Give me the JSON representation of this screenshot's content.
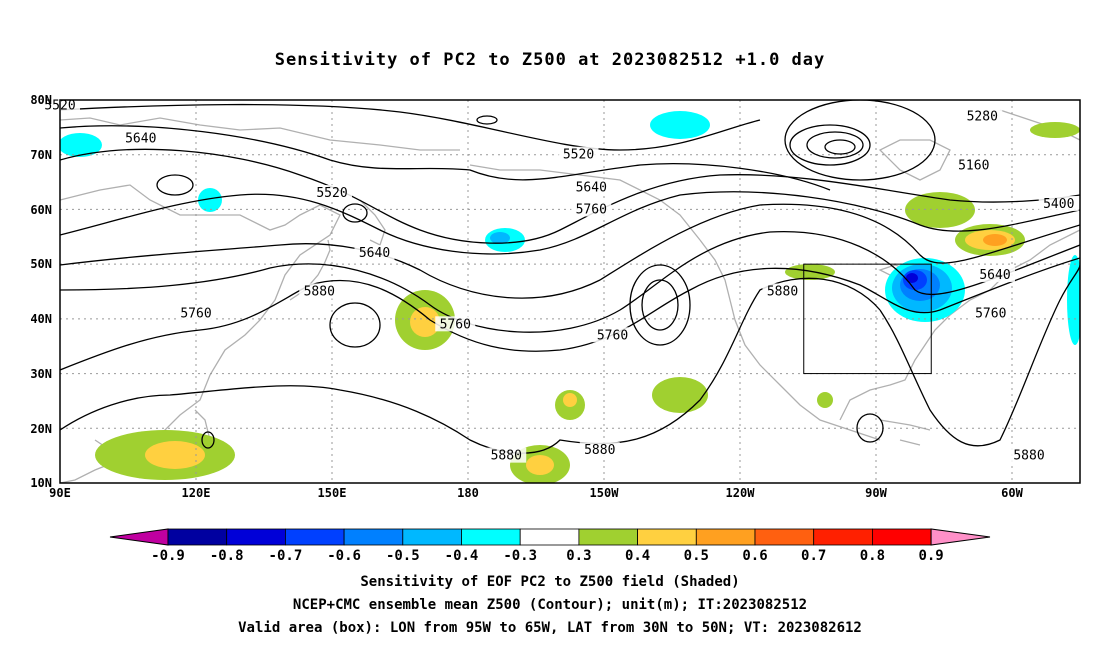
{
  "title": "Sensitivity of PC2 to Z500 at 2023082512 +1.0 day",
  "captions": [
    "Sensitivity of EOF PC2 to Z500 field (Shaded)",
    "NCEP+CMC ensemble mean Z500 (Contour); unit(m); IT:2023082512",
    "Valid area (box): LON from 95W to 65W, LAT from 30N to 50N; VT: 2023082612"
  ],
  "map": {
    "lat_labels": [
      "80N",
      "70N",
      "60N",
      "50N",
      "40N",
      "30N",
      "20N",
      "10N"
    ],
    "lon_labels": [
      "90E",
      "120E",
      "150E",
      "180",
      "150W",
      "120W",
      "90W",
      "60W"
    ],
    "contour_labels": [
      {
        "text": "5520",
        "lon": 90,
        "lat": 79
      },
      {
        "text": "5640",
        "lon": 109,
        "lat": 73
      },
      {
        "text": "5520",
        "lon": 154,
        "lat": 63
      },
      {
        "text": "5640",
        "lon": 164,
        "lat": 52
      },
      {
        "text": "5880",
        "lon": 151,
        "lat": 45
      },
      {
        "text": "5760",
        "lon": 122,
        "lat": 41
      },
      {
        "text": "5760",
        "lon": 183,
        "lat": 39
      },
      {
        "text": "5520",
        "lon": 212,
        "lat": 70
      },
      {
        "text": "5640",
        "lon": 215,
        "lat": 64
      },
      {
        "text": "5760",
        "lon": 215,
        "lat": 60
      },
      {
        "text": "5760",
        "lon": 220,
        "lat": 37
      },
      {
        "text": "5880",
        "lon": 260,
        "lat": 45
      },
      {
        "text": "5880",
        "lon": 195,
        "lat": 15
      },
      {
        "text": "5880",
        "lon": 217,
        "lat": 16
      },
      {
        "text": "5280",
        "lon": 307,
        "lat": 77
      },
      {
        "text": "5160",
        "lon": 305,
        "lat": 68
      },
      {
        "text": "5400",
        "lon": 325,
        "lat": 61
      },
      {
        "text": "5640",
        "lon": 310,
        "lat": 48
      },
      {
        "text": "5760",
        "lon": 309,
        "lat": 41
      },
      {
        "text": "5880",
        "lon": 318,
        "lat": 15
      }
    ],
    "valid_box": {
      "lon_min": 265,
      "lon_max": 295,
      "lat_min": 30,
      "lat_max": 50
    }
  },
  "colorbar": {
    "labels": [
      "-0.9",
      "-0.8",
      "-0.7",
      "-0.6",
      "-0.5",
      "-0.4",
      "-0.3",
      "0.3",
      "0.4",
      "0.5",
      "0.6",
      "0.7",
      "0.8",
      "0.9"
    ],
    "colors": [
      "#0000a0",
      "#0000d8",
      "#0040ff",
      "#0080ff",
      "#00b8ff",
      "#00ffff",
      "#ffffff",
      "#a0d030",
      "#ffd040",
      "#ffa020",
      "#ff6010",
      "#ff2000",
      "#ff0000"
    ],
    "low_end": "#c000a0",
    "high_end": "#ff90c8"
  }
}
